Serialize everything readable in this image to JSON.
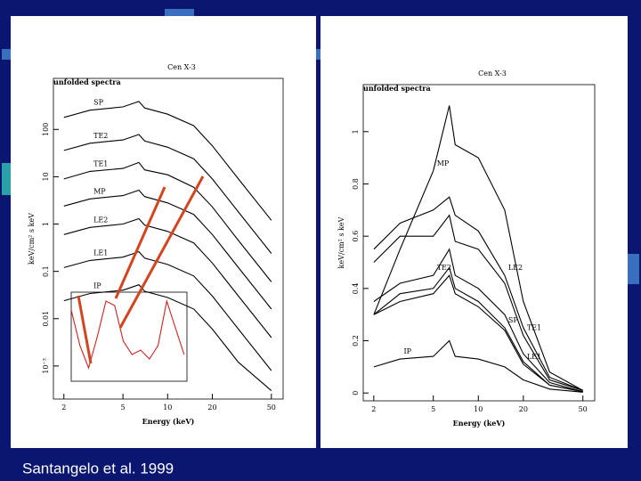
{
  "chart_data": [
    {
      "type": "line",
      "title": "Cen X-3",
      "subtitle": "unfolded spectra",
      "xlabel": "Energy (keV)",
      "ylabel": "keV/cm² s keV",
      "xlog": true,
      "ylog": true,
      "x": [
        2,
        3,
        5,
        6.4,
        7,
        10,
        15,
        20,
        30,
        50
      ],
      "xlim": [
        1.7,
        60
      ],
      "xticks": [
        2,
        5,
        10,
        20,
        50
      ],
      "ylim": [
        0.0002,
        1200
      ],
      "yticks": [
        {
          "value": 0.001,
          "label": "10⁻³"
        },
        0.01,
        0.1,
        1,
        10,
        100
      ],
      "series": [
        {
          "name": "SP",
          "color": "#000000",
          "values": [
            180,
            255,
            300,
            390,
            285,
            210,
            120,
            45,
            9,
            1.2
          ]
        },
        {
          "name": "TE2",
          "color": "#000000",
          "values": [
            36,
            51,
            60,
            78,
            57,
            42,
            24,
            9,
            1.8,
            0.24
          ]
        },
        {
          "name": "TE1",
          "color": "#000000",
          "values": [
            9,
            13,
            15,
            20,
            14,
            11,
            6,
            2.3,
            0.45,
            0.06
          ]
        },
        {
          "name": "MP",
          "color": "#000000",
          "values": [
            2.4,
            3.4,
            4,
            5.2,
            3.8,
            2.8,
            1.6,
            0.6,
            0.12,
            0.016
          ]
        },
        {
          "name": "LE2",
          "color": "#000000",
          "values": [
            0.6,
            0.85,
            1,
            1.3,
            0.95,
            0.7,
            0.4,
            0.15,
            0.03,
            0.004
          ]
        },
        {
          "name": "LE1",
          "color": "#000000",
          "values": [
            0.12,
            0.17,
            0.2,
            0.26,
            0.19,
            0.14,
            0.08,
            0.03,
            0.006,
            0.0008
          ]
        },
        {
          "name": "IP",
          "color": "#000000",
          "values": [
            0.024,
            0.034,
            0.04,
            0.052,
            0.038,
            0.028,
            0.016,
            0.006,
            0.0012,
            0.0003
          ]
        }
      ]
    },
    {
      "type": "line",
      "title": "Cen X-3",
      "subtitle": "unfolded spectra",
      "xlabel": "Energy (keV)",
      "ylabel": "keV/cm² s keV",
      "xlog": true,
      "ylog": false,
      "x": [
        2,
        3,
        5,
        6.4,
        7,
        10,
        15,
        20,
        30,
        50
      ],
      "xlim": [
        1.7,
        60
      ],
      "xticks": [
        2,
        5,
        10,
        20,
        50
      ],
      "ylim": [
        -0.03,
        1.18
      ],
      "yticks": [
        0,
        0.2,
        0.4,
        0.6,
        0.8,
        1
      ],
      "series": [
        {
          "name": "MP",
          "color": "#000000",
          "values": [
            0.3,
            0.55,
            0.85,
            1.1,
            0.95,
            0.9,
            0.7,
            0.35,
            0.08,
            0.01
          ]
        },
        {
          "name": "LE2",
          "color": "#000000",
          "values": [
            0.55,
            0.65,
            0.7,
            0.75,
            0.68,
            0.62,
            0.45,
            0.25,
            0.06,
            0.01
          ]
        },
        {
          "name": "TE1",
          "color": "#000000",
          "values": [
            0.5,
            0.6,
            0.6,
            0.68,
            0.58,
            0.55,
            0.42,
            0.22,
            0.05,
            0.01
          ]
        },
        {
          "name": "TE2",
          "color": "#000000",
          "values": [
            0.35,
            0.42,
            0.45,
            0.55,
            0.45,
            0.4,
            0.3,
            0.15,
            0.04,
            0.005
          ]
        },
        {
          "name": "SP",
          "color": "#000000",
          "values": [
            0.3,
            0.38,
            0.4,
            0.48,
            0.4,
            0.35,
            0.25,
            0.12,
            0.03,
            0.005
          ]
        },
        {
          "name": "LE1",
          "color": "#000000",
          "values": [
            0.3,
            0.35,
            0.38,
            0.45,
            0.38,
            0.33,
            0.24,
            0.11,
            0.03,
            0.005
          ]
        },
        {
          "name": "IP",
          "color": "#000000",
          "values": [
            0.1,
            0.13,
            0.14,
            0.2,
            0.14,
            0.13,
            0.1,
            0.05,
            0.015,
            0.003
          ]
        }
      ]
    },
    {
      "type": "line",
      "xlog": false,
      "ylog": false,
      "x": [
        0,
        0.15,
        0.3,
        0.45,
        0.6,
        0.75,
        0.9,
        1.05,
        1.2,
        1.35,
        1.5,
        1.65,
        1.8,
        1.95
      ],
      "xlim": [
        0,
        2
      ],
      "ylim": [
        0,
        1
      ],
      "series": [
        {
          "color": "#cc2222",
          "values": [
            0.8,
            0.4,
            0.15,
            0.5,
            0.9,
            0.85,
            0.45,
            0.3,
            0.35,
            0.25,
            0.4,
            0.9,
            0.6,
            0.3
          ]
        }
      ]
    }
  ],
  "footer": "Santangelo et al. 1999"
}
